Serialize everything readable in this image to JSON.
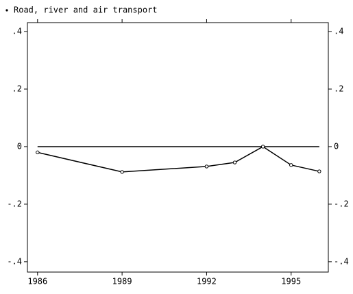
{
  "chart_data": {
    "type": "line",
    "x": [
      1986,
      1989,
      1992,
      1993,
      1994,
      1995,
      1996
    ],
    "series": [
      {
        "name": "Road, river and air transport",
        "color": "#000000",
        "values": [
          -0.02,
          -0.088,
          -0.069,
          -0.055,
          0.0,
          -0.064,
          -0.086
        ]
      }
    ],
    "xlim": [
      1985.64,
      1996.32
    ],
    "xticks": [
      1986,
      1989,
      1992,
      1995
    ],
    "ylim": [
      -0.436,
      0.431
    ],
    "yticks": [
      {
        "value": 0.4,
        "label": ".4"
      },
      {
        "value": 0.2,
        "label": ".2"
      },
      0,
      {
        "value": -0.2,
        "label": "-.2"
      },
      {
        "value": -0.4,
        "label": "-.4"
      }
    ],
    "yline": 0,
    "markers": "hollow-circle"
  }
}
